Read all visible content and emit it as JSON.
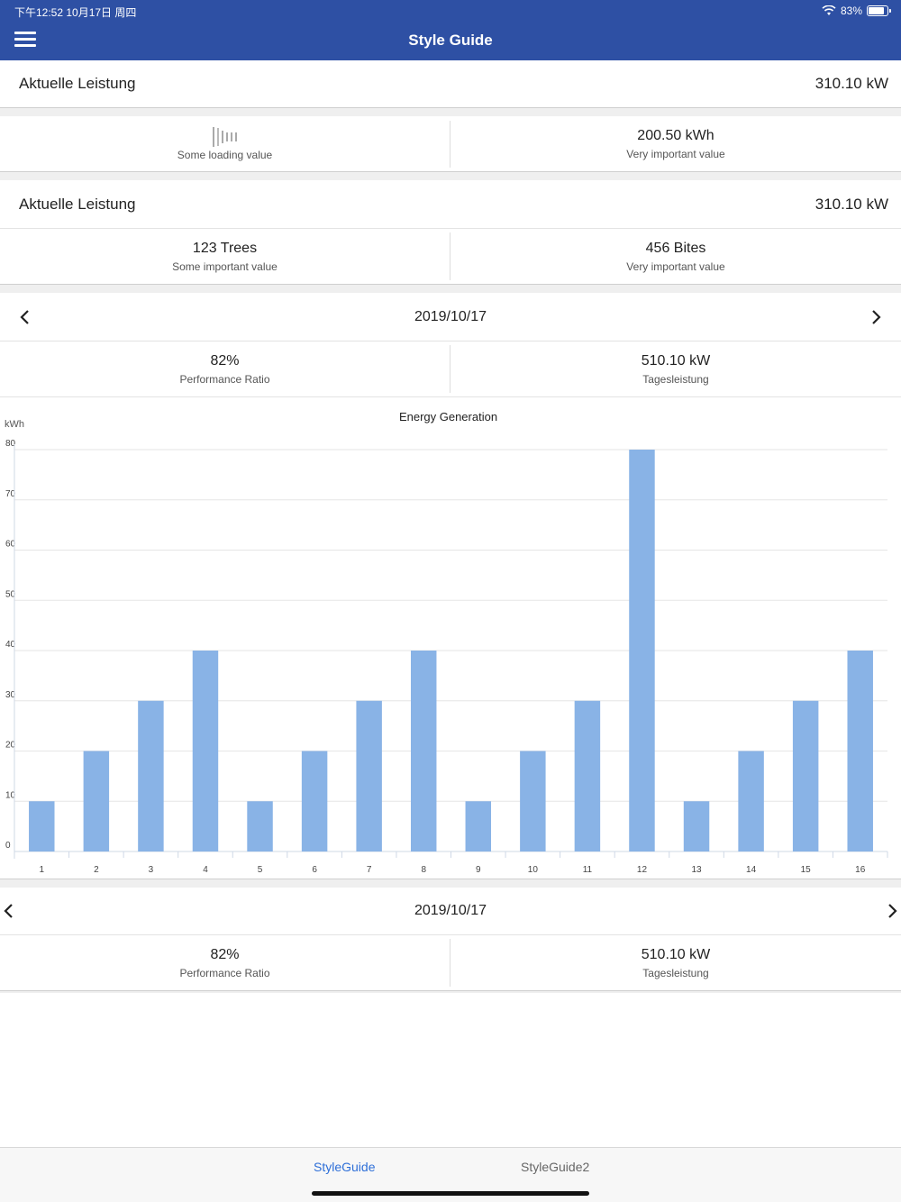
{
  "status": {
    "time": "下午12:52   10月17日 周四",
    "battery": "83%",
    "battery_level": 0.83
  },
  "header": {
    "title": "Style Guide"
  },
  "section1": {
    "title": "Aktuelle Leistung",
    "value": "310.10 kW",
    "left": {
      "caption": "Some loading value",
      "loading": true
    },
    "right": {
      "value": "200.50 kWh",
      "caption": "Very important value"
    }
  },
  "section2": {
    "title": "Aktuelle Leistung",
    "value": "310.10 kW",
    "left": {
      "value": "123 Trees",
      "caption": "Some important value"
    },
    "right": {
      "value": "456 Bites",
      "caption": "Very important value"
    }
  },
  "section3": {
    "date": "2019/10/17",
    "left": {
      "value": "82%",
      "caption": "Performance Ratio"
    },
    "right": {
      "value": "510.10 kW",
      "caption": "Tagesleistung"
    }
  },
  "section4": {
    "date": "2019/10/17",
    "left": {
      "value": "82%",
      "caption": "Performance Ratio"
    },
    "right": {
      "value": "510.10 kW",
      "caption": "Tagesleistung"
    }
  },
  "chart_data": {
    "type": "bar",
    "title": "Energy Generation",
    "ylabel": "kWh",
    "xlabel": "",
    "categories": [
      "1",
      "2",
      "3",
      "4",
      "5",
      "6",
      "7",
      "8",
      "9",
      "10",
      "11",
      "12",
      "13",
      "14",
      "15",
      "16"
    ],
    "values": [
      10,
      20,
      30,
      40,
      10,
      20,
      30,
      40,
      10,
      20,
      30,
      80,
      10,
      20,
      30,
      40
    ],
    "ylim": [
      0,
      80
    ],
    "yticks": [
      0,
      10,
      20,
      30,
      40,
      50,
      60,
      70,
      80
    ],
    "grid": true,
    "bar_color": "#89b3e6"
  },
  "tabs": [
    {
      "label": "StyleGuide",
      "active": true
    },
    {
      "label": "StyleGuide2",
      "active": false
    }
  ],
  "colors": {
    "header": "#2e50a4",
    "active_tab": "#2e6fd8",
    "inactive_tab": "#666666"
  }
}
